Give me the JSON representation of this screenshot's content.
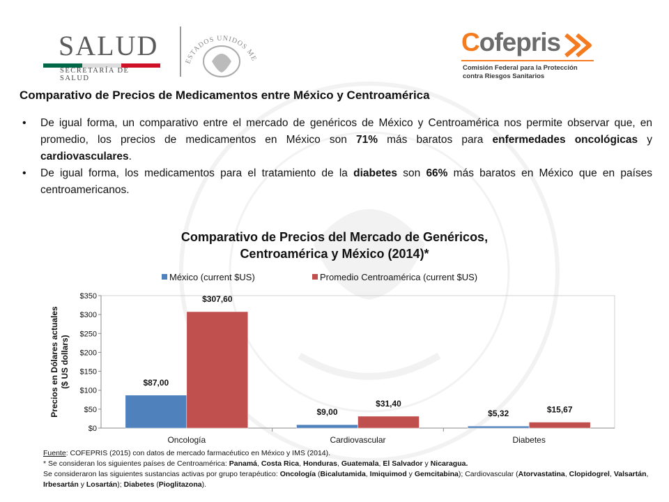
{
  "header": {
    "salud_logo": {
      "word": "SALUD",
      "subtitle": "SECRETARÍA DE SALUD",
      "colors": [
        "#006847",
        "#ffffff",
        "#ce1126"
      ]
    },
    "seal_text": "ESTADOS UNIDOS MEXICANOS",
    "cofepris_logo": {
      "word_accent": "C",
      "word_rest": "ofepris",
      "line1": "Comisión Federal para la Protección",
      "line2": "contra Riesgos Sanitarios",
      "accent_color": "#f47b20"
    }
  },
  "main_title": "Comparativo de Precios de Medicamentos entre México y Centroamérica",
  "bullets": [
    {
      "parts": [
        {
          "text": "De igual forma, un comparativo entre el mercado de genéricos de México y Centroamérica nos permite observar que, en promedio, los precios de medicamentos en México son "
        },
        {
          "text": "71%",
          "bold": true
        },
        {
          "text": " más baratos para "
        },
        {
          "text": "enfermedades oncológicas",
          "bold": true
        },
        {
          "text": " y "
        },
        {
          "text": "cardiovasculares",
          "bold": true
        },
        {
          "text": "."
        }
      ]
    },
    {
      "parts": [
        {
          "text": "De igual forma, los medicamentos para el tratamiento de la "
        },
        {
          "text": "diabetes",
          "bold": true
        },
        {
          "text": " son "
        },
        {
          "text": "66%",
          "bold": true
        },
        {
          "text": " más baratos en México que en países centroamericanos."
        }
      ]
    }
  ],
  "chart_data": {
    "type": "bar",
    "title_line1": "Comparativo de Precios del Mercado de Genéricos,",
    "title_line2": "Centroamérica y México (2014)*",
    "ylabel_line1": "Precios en Dólares actuales",
    "ylabel_line2": "($ US dollars)",
    "xlabel": "",
    "categories": [
      "Oncología",
      "Cardiovascular",
      "Diabetes"
    ],
    "ylim": [
      0,
      350
    ],
    "yticks": [
      0,
      50,
      100,
      150,
      200,
      250,
      300,
      350
    ],
    "ytick_labels": [
      "$0",
      "$50",
      "$100",
      "$150",
      "$200",
      "$250",
      "$300",
      "$350"
    ],
    "legend_position": "top",
    "grid": false,
    "series": [
      {
        "name": "México (current $US)",
        "color": "#4f81bd",
        "values": [
          87.0,
          9.0,
          5.32
        ],
        "labels": [
          "$87,00",
          "$9,00",
          "$5,32"
        ]
      },
      {
        "name": "Promedio Centroamérica (current $US)",
        "color": "#c0504d",
        "values": [
          307.6,
          31.4,
          15.67
        ],
        "labels": [
          "$307,60",
          "$31,40",
          "$15,67"
        ]
      }
    ]
  },
  "footer": {
    "source_label": "Fuente",
    "source_text": ": COFEPRIS (2015) con datos de mercado farmacéutico en México y IMS (2014).",
    "note1_parts": [
      {
        "text": "* Se consideran los siguientes países de Centroamérica: "
      },
      {
        "text": "Panamá",
        "bold": true
      },
      {
        "text": ", "
      },
      {
        "text": "Costa Rica",
        "bold": true
      },
      {
        "text": ", "
      },
      {
        "text": "Honduras",
        "bold": true
      },
      {
        "text": ", "
      },
      {
        "text": "Guatemala",
        "bold": true
      },
      {
        "text": ", "
      },
      {
        "text": "El Salvador",
        "bold": true
      },
      {
        "text": " y "
      },
      {
        "text": "Nicaragua.",
        "bold": true
      }
    ],
    "note2_parts": [
      {
        "text": "Se consideraron las siguientes sustancias activas por grupo terapéutico: "
      },
      {
        "text": "Oncología",
        "bold": true
      },
      {
        "text": " ("
      },
      {
        "text": "Bicalutamida",
        "bold": true
      },
      {
        "text": ", "
      },
      {
        "text": "Imiquimod",
        "bold": true
      },
      {
        "text": " y "
      },
      {
        "text": "Gemcitabina",
        "bold": true
      },
      {
        "text": "); Cardiovascular ("
      },
      {
        "text": "Atorvastatina",
        "bold": true
      },
      {
        "text": ", "
      },
      {
        "text": "Clopidogrel",
        "bold": true
      },
      {
        "text": ", "
      },
      {
        "text": "Valsartán",
        "bold": true
      },
      {
        "text": ", "
      },
      {
        "text": "Irbesartán",
        "bold": true
      },
      {
        "text": " y "
      },
      {
        "text": "Losartán",
        "bold": true
      },
      {
        "text": "); "
      },
      {
        "text": "Diabetes",
        "bold": true
      },
      {
        "text": " ("
      },
      {
        "text": "Pioglitazona",
        "bold": true
      },
      {
        "text": ")."
      }
    ]
  }
}
